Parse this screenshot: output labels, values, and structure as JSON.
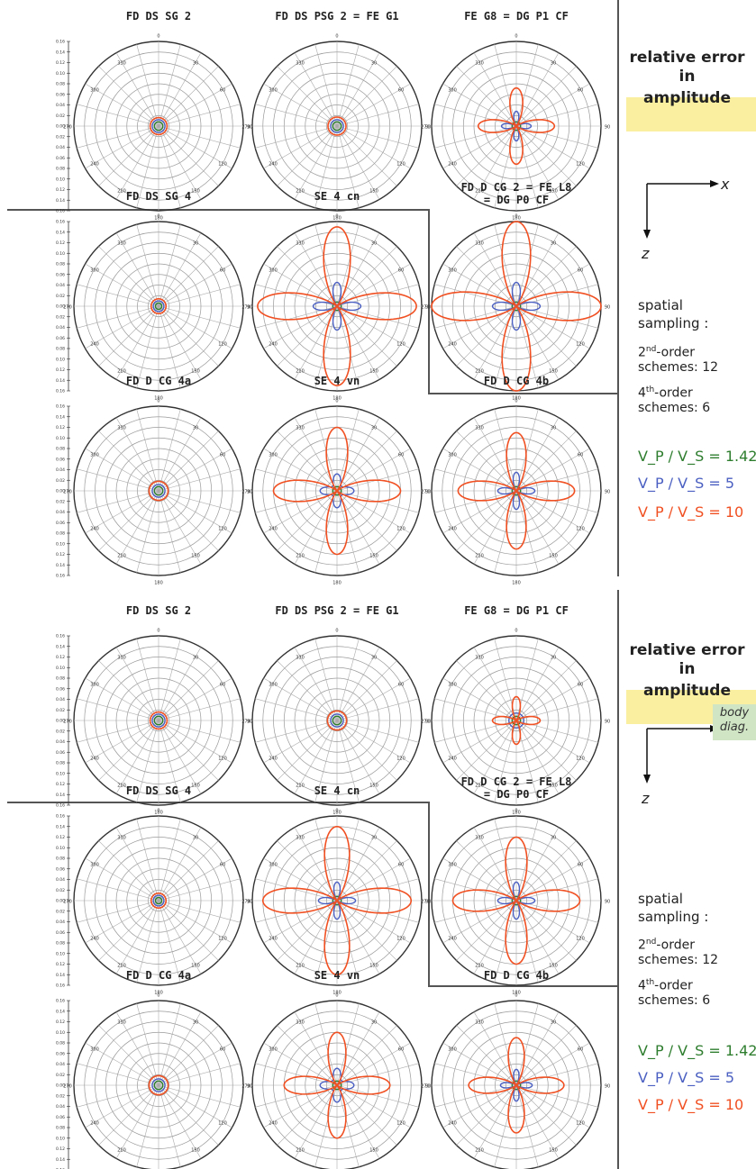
{
  "page_headings": {
    "figure_A": {
      "title_lines": [
        "relative error",
        "in",
        "amplitude"
      ]
    },
    "figure_B": {
      "title_lines": [
        "relative error",
        "in",
        "amplitude"
      ]
    }
  },
  "sidebar": {
    "spatial_sampling": [
      "spatial",
      "sampling :"
    ],
    "order2": {
      "prefix": "2",
      "sup": "nd",
      "rest": "-order",
      "line2": "schemes: 12"
    },
    "order4": {
      "prefix": "4",
      "sup": "th",
      "rest": "-order",
      "line2": "schemes:  6"
    },
    "axis_x": "x",
    "axis_z": "z",
    "body_diag": [
      "body",
      "diag."
    ]
  },
  "legend": [
    {
      "label": "V_P / V_S = 1.42",
      "color": "#2e7d2e"
    },
    {
      "label": "V_P / V_S = 5",
      "color": "#4a5fc1"
    },
    {
      "label": "V_P / V_S = 10",
      "color": "#f05022"
    }
  ],
  "colors": {
    "ratio_1_42": "#2e7d2e",
    "ratio_5": "#4a5fc1",
    "ratio_10": "#f05022",
    "grid": "#999999"
  },
  "chart_data": [
    {
      "type": "polar",
      "figure": "A",
      "title": "FD DS SG 2",
      "angle_ticks": [
        "0",
        "30",
        "60",
        "90",
        "120",
        "150",
        "180",
        "210",
        "240",
        "270",
        "300",
        "330"
      ],
      "radial_scale": [
        "0.16",
        "0.14",
        "0.12",
        "0.10",
        "0.08",
        "0.06",
        "0.04",
        "0.02",
        "0.00",
        "0.02",
        "0.04",
        "0.06",
        "0.08",
        "0.10",
        "0.12",
        "0.14",
        "0.16"
      ],
      "series": [
        {
          "name": "V_P / V_S = 1.42",
          "kind": "circle",
          "r0": 0.008,
          "amp": 0
        },
        {
          "name": "V_P / V_S = 5",
          "kind": "circle",
          "r0": 0.012,
          "amp": 0
        },
        {
          "name": "V_P / V_S = 10",
          "kind": "circle",
          "r0": 0.016,
          "amp": 0
        }
      ]
    },
    {
      "type": "polar",
      "figure": "A",
      "title": "FD DS PSG 2 = FE G1",
      "angle_ticks": [
        "0",
        "30",
        "60",
        "90",
        "120",
        "150",
        "180",
        "210",
        "240",
        "270",
        "300",
        "330"
      ],
      "series": [
        {
          "name": "V_P / V_S = 1.42",
          "kind": "circle",
          "r0": 0.008,
          "amp": 0
        },
        {
          "name": "V_P / V_S = 5",
          "kind": "circle",
          "r0": 0.012,
          "amp": 0
        },
        {
          "name": "V_P / V_S = 10",
          "kind": "circle",
          "r0": 0.017,
          "amp": 0
        }
      ]
    },
    {
      "type": "polar",
      "figure": "A",
      "title": "FE G8 = DG P1 CF",
      "angle_ticks": [
        "0",
        "30",
        "60",
        "90",
        "120",
        "150",
        "180",
        "210",
        "240",
        "270",
        "300",
        "330"
      ],
      "series": [
        {
          "name": "V_P / V_S = 1.42",
          "kind": "circle",
          "r0": 0.008,
          "amp": 0
        },
        {
          "name": "V_P / V_S = 5",
          "kind": "lobes",
          "r0": 0.0,
          "amp": 0.028
        },
        {
          "name": "V_P / V_S = 10",
          "kind": "lobes",
          "r0": 0.0,
          "amp": 0.072
        }
      ]
    },
    {
      "type": "polar",
      "figure": "A",
      "title": "FD DS SG 4",
      "angle_ticks": [
        "0",
        "30",
        "60",
        "90",
        "120",
        "150",
        "180",
        "210",
        "240",
        "270",
        "300",
        "330"
      ],
      "series": [
        {
          "name": "V_P / V_S = 1.42",
          "kind": "circle",
          "r0": 0.006,
          "amp": 0
        },
        {
          "name": "V_P / V_S = 5",
          "kind": "circle",
          "r0": 0.01,
          "amp": 0
        },
        {
          "name": "V_P / V_S = 10",
          "kind": "circle",
          "r0": 0.014,
          "amp": 0
        }
      ]
    },
    {
      "type": "polar",
      "figure": "A",
      "title": "SE 4 cn",
      "angle_ticks": [
        "0",
        "30",
        "60",
        "90",
        "120",
        "150",
        "180",
        "210",
        "240",
        "270",
        "300",
        "330"
      ],
      "series": [
        {
          "name": "V_P / V_S = 1.42",
          "kind": "circle",
          "r0": 0.008,
          "amp": 0
        },
        {
          "name": "V_P / V_S = 5",
          "kind": "lobes",
          "r0": 0.0,
          "amp": 0.045
        },
        {
          "name": "V_P / V_S = 10",
          "kind": "lobes",
          "r0": 0.0,
          "amp": 0.15
        }
      ]
    },
    {
      "type": "polar",
      "figure": "A",
      "title": "FD D CG 2 = FE L8 = DG P0 CF",
      "angle_ticks": [
        "0",
        "30",
        "60",
        "90",
        "120",
        "150",
        "180",
        "210",
        "240",
        "270",
        "300",
        "330"
      ],
      "series": [
        {
          "name": "V_P / V_S = 1.42",
          "kind": "circle",
          "r0": 0.008,
          "amp": 0
        },
        {
          "name": "V_P / V_S = 5",
          "kind": "lobes",
          "r0": 0.0,
          "amp": 0.045
        },
        {
          "name": "V_P / V_S = 10",
          "kind": "lobes",
          "r0": 0.0,
          "amp": 0.16
        }
      ]
    },
    {
      "type": "polar",
      "figure": "A",
      "title": "FD D CG 4a",
      "angle_ticks": [
        "0",
        "30",
        "60",
        "90",
        "120",
        "150",
        "180",
        "210",
        "240",
        "270",
        "300",
        "330"
      ],
      "series": [
        {
          "name": "V_P / V_S = 1.42",
          "kind": "circle",
          "r0": 0.008,
          "amp": 0
        },
        {
          "name": "V_P / V_S = 5",
          "kind": "circle",
          "r0": 0.012,
          "amp": 0
        },
        {
          "name": "V_P / V_S = 10",
          "kind": "circle",
          "r0": 0.018,
          "amp": 0
        }
      ]
    },
    {
      "type": "polar",
      "figure": "A",
      "title": "SE 4 vn",
      "angle_ticks": [
        "0",
        "30",
        "60",
        "90",
        "120",
        "150",
        "180",
        "210",
        "240",
        "270",
        "300",
        "330"
      ],
      "series": [
        {
          "name": "V_P / V_S = 1.42",
          "kind": "circle",
          "r0": 0.008,
          "amp": 0
        },
        {
          "name": "V_P / V_S = 5",
          "kind": "lobes",
          "r0": 0.012,
          "amp": 0.02
        },
        {
          "name": "V_P / V_S = 10",
          "kind": "lobes",
          "r0": 0.0,
          "amp": 0.12
        }
      ]
    },
    {
      "type": "polar",
      "figure": "A",
      "title": "FD D CG 4b",
      "angle_ticks": [
        "0",
        "30",
        "60",
        "90",
        "120",
        "150",
        "180",
        "210",
        "240",
        "270",
        "300",
        "330"
      ],
      "series": [
        {
          "name": "V_P / V_S = 1.42",
          "kind": "circle",
          "r0": 0.008,
          "amp": 0
        },
        {
          "name": "V_P / V_S = 5",
          "kind": "lobes",
          "r0": 0.0,
          "amp": 0.035
        },
        {
          "name": "V_P / V_S = 10",
          "kind": "lobes",
          "r0": 0.0,
          "amp": 0.11
        }
      ]
    },
    {
      "type": "polar",
      "figure": "B",
      "title": "FD DS SG 2",
      "angle_ticks": [
        "0",
        "30",
        "60",
        "90",
        "120",
        "150",
        "180",
        "210",
        "240",
        "270",
        "300",
        "330"
      ],
      "series": [
        {
          "name": "V_P / V_S = 1.42",
          "kind": "circle",
          "r0": 0.008,
          "amp": 0
        },
        {
          "name": "V_P / V_S = 5",
          "kind": "circle",
          "r0": 0.012,
          "amp": 0
        },
        {
          "name": "V_P / V_S = 10",
          "kind": "circle",
          "r0": 0.016,
          "amp": 0
        }
      ]
    },
    {
      "type": "polar",
      "figure": "B",
      "title": "FD DS PSG 2 = FE G1",
      "angle_ticks": [
        "0",
        "30",
        "60",
        "90",
        "120",
        "150",
        "180",
        "210",
        "240",
        "270",
        "300",
        "330"
      ],
      "series": [
        {
          "name": "V_P / V_S = 1.42",
          "kind": "circle",
          "r0": 0.008,
          "amp": 0
        },
        {
          "name": "V_P / V_S = 5",
          "kind": "circle",
          "r0": 0.012,
          "amp": 0
        },
        {
          "name": "V_P / V_S = 10",
          "kind": "circle",
          "r0": 0.018,
          "amp": 0
        }
      ]
    },
    {
      "type": "polar",
      "figure": "B",
      "title": "FE G8 = DG P1 CF",
      "angle_ticks": [
        "0",
        "30",
        "60",
        "90",
        "120",
        "150",
        "180",
        "210",
        "240",
        "270",
        "300",
        "330"
      ],
      "series": [
        {
          "name": "V_P / V_S = 1.42",
          "kind": "circle",
          "r0": 0.008,
          "amp": 0
        },
        {
          "name": "V_P / V_S = 5",
          "kind": "circle",
          "r0": 0.014,
          "amp": 0
        },
        {
          "name": "V_P / V_S = 10",
          "kind": "lobes",
          "r0": 0.0,
          "amp": 0.045
        }
      ]
    },
    {
      "type": "polar",
      "figure": "B",
      "title": "FD DS SG 4",
      "angle_ticks": [
        "0",
        "30",
        "60",
        "90",
        "120",
        "150",
        "180",
        "210",
        "240",
        "270",
        "300",
        "330"
      ],
      "series": [
        {
          "name": "V_P / V_S = 1.42",
          "kind": "circle",
          "r0": 0.006,
          "amp": 0
        },
        {
          "name": "V_P / V_S = 5",
          "kind": "circle",
          "r0": 0.01,
          "amp": 0
        },
        {
          "name": "V_P / V_S = 10",
          "kind": "circle",
          "r0": 0.014,
          "amp": 0
        }
      ]
    },
    {
      "type": "polar",
      "figure": "B",
      "title": "SE 4 cn",
      "angle_ticks": [
        "0",
        "30",
        "60",
        "90",
        "120",
        "150",
        "180",
        "210",
        "240",
        "270",
        "300",
        "330"
      ],
      "series": [
        {
          "name": "V_P / V_S = 1.42",
          "kind": "circle",
          "r0": 0.008,
          "amp": 0
        },
        {
          "name": "V_P / V_S = 5",
          "kind": "lobes",
          "r0": 0.0,
          "amp": 0.035
        },
        {
          "name": "V_P / V_S = 10",
          "kind": "lobes",
          "r0": 0.0,
          "amp": 0.14
        }
      ]
    },
    {
      "type": "polar",
      "figure": "B",
      "title": "FD D CG 2 = FE L8 = DG P0 CF",
      "angle_ticks": [
        "0",
        "30",
        "60",
        "90",
        "120",
        "150",
        "180",
        "210",
        "240",
        "270",
        "300",
        "330"
      ],
      "series": [
        {
          "name": "V_P / V_S = 1.42",
          "kind": "circle",
          "r0": 0.008,
          "amp": 0
        },
        {
          "name": "V_P / V_S = 5",
          "kind": "lobes",
          "r0": 0.0,
          "amp": 0.035
        },
        {
          "name": "V_P / V_S = 10",
          "kind": "lobes",
          "r0": 0.0,
          "amp": 0.12
        }
      ]
    },
    {
      "type": "polar",
      "figure": "B",
      "title": "FD D CG 4a",
      "angle_ticks": [
        "0",
        "30",
        "60",
        "90",
        "120",
        "150",
        "180",
        "210",
        "240",
        "270",
        "300",
        "330"
      ],
      "series": [
        {
          "name": "V_P / V_S = 1.42",
          "kind": "circle",
          "r0": 0.008,
          "amp": 0
        },
        {
          "name": "V_P / V_S = 5",
          "kind": "circle",
          "r0": 0.012,
          "amp": 0
        },
        {
          "name": "V_P / V_S = 10",
          "kind": "circle",
          "r0": 0.018,
          "amp": 0
        }
      ]
    },
    {
      "type": "polar",
      "figure": "B",
      "title": "SE 4 vn",
      "angle_ticks": [
        "0",
        "30",
        "60",
        "90",
        "120",
        "150",
        "180",
        "210",
        "240",
        "270",
        "300",
        "330"
      ],
      "series": [
        {
          "name": "V_P / V_S = 1.42",
          "kind": "circle",
          "r0": 0.008,
          "amp": 0
        },
        {
          "name": "V_P / V_S = 5",
          "kind": "lobes",
          "r0": 0.012,
          "amp": 0.02
        },
        {
          "name": "V_P / V_S = 10",
          "kind": "lobes",
          "r0": 0.0,
          "amp": 0.1
        }
      ]
    },
    {
      "type": "polar",
      "figure": "B",
      "title": "FD D CG 4b",
      "angle_ticks": [
        "0",
        "30",
        "60",
        "90",
        "120",
        "150",
        "180",
        "210",
        "240",
        "270",
        "300",
        "330"
      ],
      "series": [
        {
          "name": "V_P / V_S = 1.42",
          "kind": "circle",
          "r0": 0.008,
          "amp": 0
        },
        {
          "name": "V_P / V_S = 5",
          "kind": "lobes",
          "r0": 0.0,
          "amp": 0.03
        },
        {
          "name": "V_P / V_S = 10",
          "kind": "lobes",
          "r0": 0.0,
          "amp": 0.09
        }
      ]
    }
  ]
}
